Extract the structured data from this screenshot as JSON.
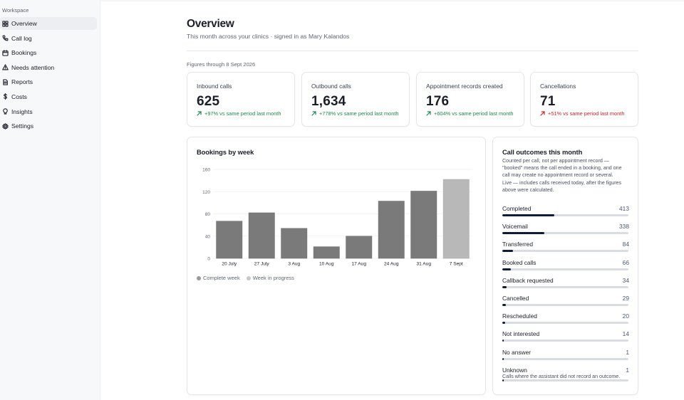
{
  "sidebar": {
    "section_label": "Workspace",
    "items": [
      {
        "label": "Overview",
        "icon": "grid-icon",
        "active": true
      },
      {
        "label": "Call log",
        "icon": "phone-icon",
        "active": false
      },
      {
        "label": "Bookings",
        "icon": "calendar-icon",
        "active": false
      },
      {
        "label": "Needs attention",
        "icon": "alert-triangle-icon",
        "active": false
      },
      {
        "label": "Reports",
        "icon": "document-icon",
        "active": false
      },
      {
        "label": "Costs",
        "icon": "dollar-icon",
        "active": false
      },
      {
        "label": "Insights",
        "icon": "lightbulb-icon",
        "active": false
      },
      {
        "label": "Settings",
        "icon": "gear-icon",
        "active": false
      }
    ]
  },
  "header": {
    "title": "Overview",
    "subtitle": "This month across your clinics · signed in as Mary Kalandos",
    "figures_through": "Figures through 8 Sept 2026"
  },
  "stats": [
    {
      "label": "Inbound calls",
      "value": "625",
      "delta": "+97% vs same period last month",
      "trend": "up",
      "color": "#1c8a4a"
    },
    {
      "label": "Outbound calls",
      "value": "1,634",
      "delta": "+778% vs same period last month",
      "trend": "up",
      "color": "#1c8a4a"
    },
    {
      "label": "Appointment records created",
      "value": "176",
      "delta": "+604% vs same period last month",
      "trend": "up",
      "color": "#1c8a4a"
    },
    {
      "label": "Cancellations",
      "value": "71",
      "delta": "+51% vs same period last month",
      "trend": "up",
      "color": "#d2232a"
    }
  ],
  "bookings_chart": {
    "title": "Bookings by week",
    "legend": [
      {
        "label": "Complete week",
        "color": "#7a7a7a"
      },
      {
        "label": "Week in progress",
        "color": "#b8b8b8"
      }
    ]
  },
  "chart_data": {
    "type": "bar",
    "title": "Bookings by week",
    "categories": [
      "20 July",
      "27 July",
      "3 Aug",
      "10 Aug",
      "17 Aug",
      "24 Aug",
      "31 Aug",
      "7 Sept"
    ],
    "values": [
      67,
      82,
      54,
      21,
      40,
      103,
      121,
      142
    ],
    "in_progress": [
      false,
      false,
      false,
      false,
      false,
      false,
      false,
      true
    ],
    "ylim": [
      0,
      160
    ],
    "yticks": [
      0,
      40,
      80,
      120,
      160
    ],
    "grid": true,
    "legend_placement": "bottom-left",
    "colors": {
      "complete": "#7a7a7a",
      "in_progress": "#b8b8b8"
    }
  },
  "outcomes": {
    "title": "Call outcomes this month",
    "note": "Counted per call, not per appointment record — \"booked\" means the call ended in a booking, and one call may create no appointment record or several.",
    "live_note": "Live — includes calls received today, after the figures above were calculated.",
    "max": 413,
    "rows": [
      {
        "label": "Completed",
        "count": 413
      },
      {
        "label": "Voicemail",
        "count": 338
      },
      {
        "label": "Transferred",
        "count": 84
      },
      {
        "label": "Booked calls",
        "count": 66
      },
      {
        "label": "Callback requested",
        "count": 34
      },
      {
        "label": "Cancelled",
        "count": 29
      },
      {
        "label": "Rescheduled",
        "count": 20
      },
      {
        "label": "Not interested",
        "count": 14
      },
      {
        "label": "No answer",
        "count": 1
      },
      {
        "label": "Unknown",
        "count": 1,
        "hint": "Calls where the assistant did not record an outcome."
      }
    ]
  }
}
